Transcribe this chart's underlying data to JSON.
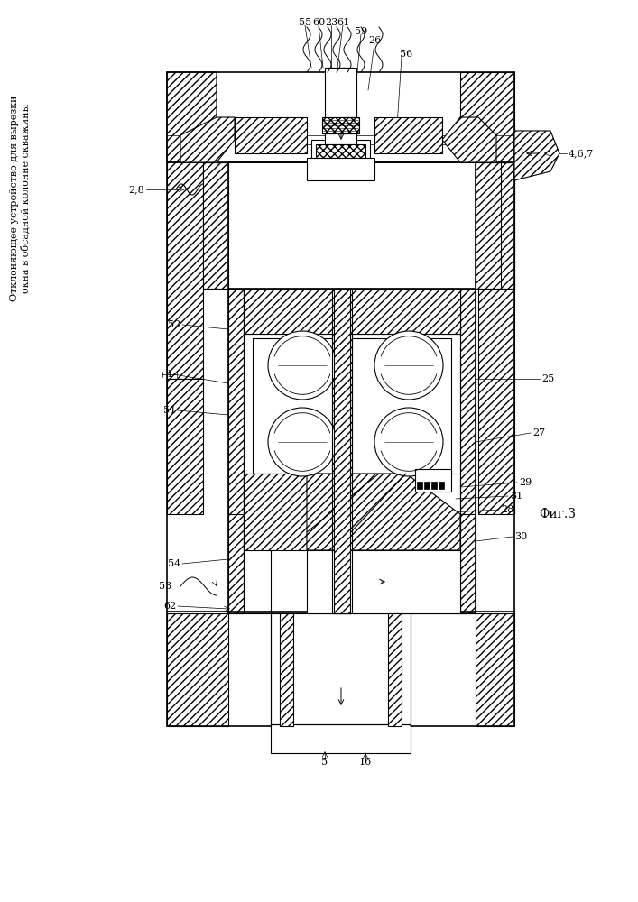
{
  "title": "Отклоняющее устройство для вырезки\nокна в обсадной колонне скважины",
  "fig_label": "Фиг.3",
  "bg_color": "#ffffff"
}
